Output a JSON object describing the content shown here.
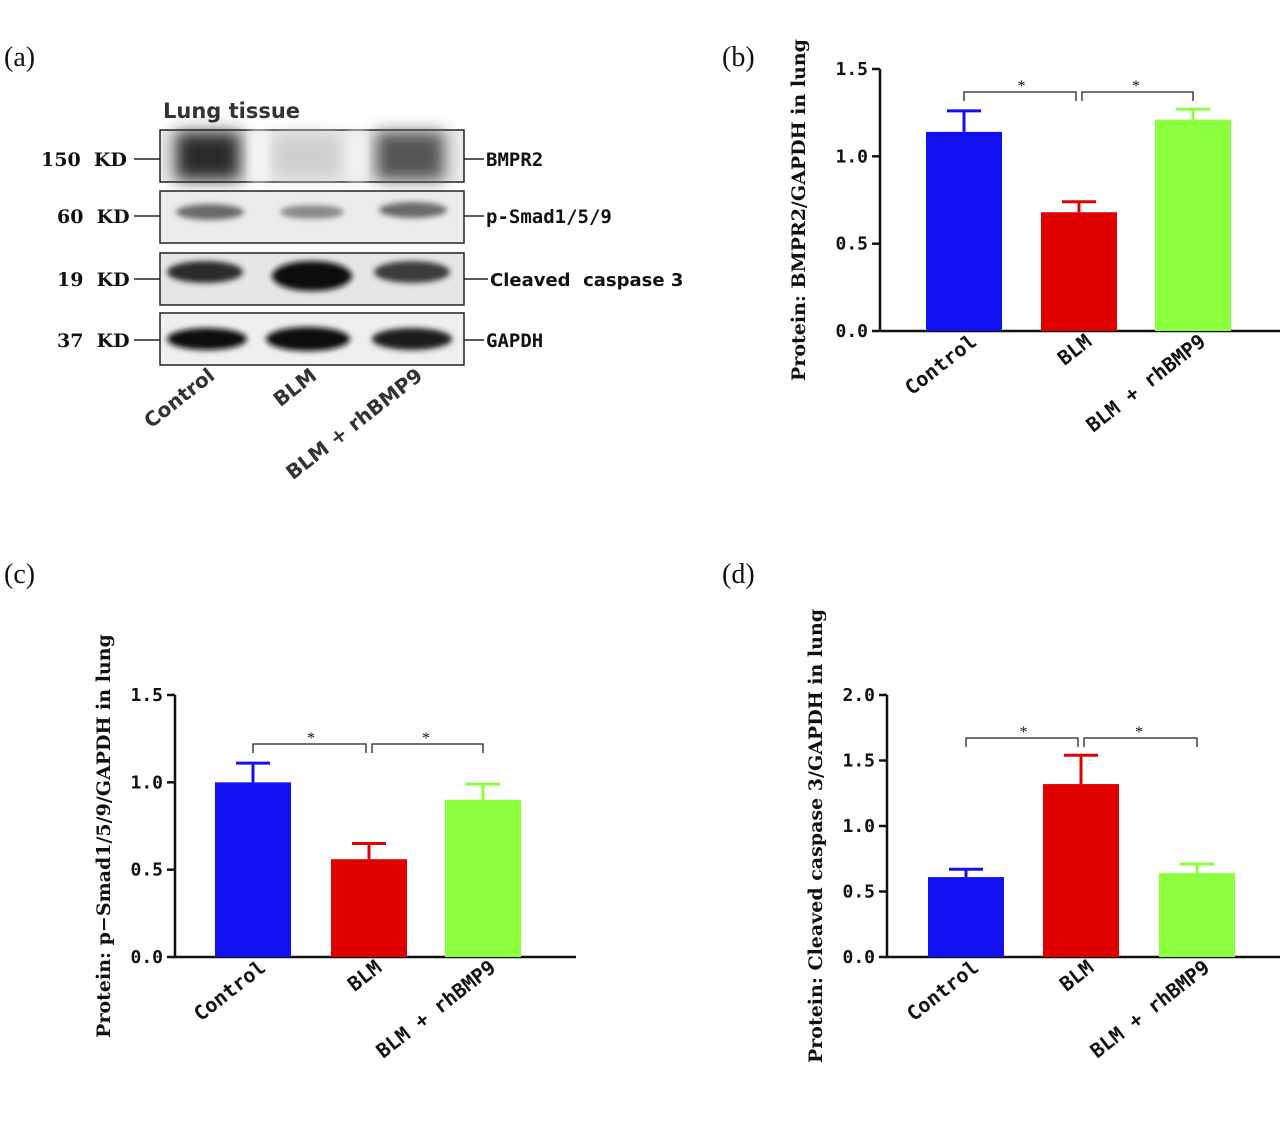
{
  "western_blot": {
    "panel_label": "(a)",
    "title": "Lung tissue",
    "rows": [
      {
        "kd": "150  KD",
        "protein": "BMPR2"
      },
      {
        "kd": "60  KD",
        "protein": "p-Smad1/5/9"
      },
      {
        "kd": "19  KD",
        "protein": "Cleaved  caspase 3"
      },
      {
        "kd": "37  KD",
        "protein": "GAPDH"
      }
    ],
    "lanes": [
      "Control",
      "BLM",
      "BLM + rhBMP9"
    ]
  },
  "colors": {
    "control": "#1010f0",
    "blm": "#e00000",
    "rhbmp9": "#8cff3c"
  },
  "chart_data": [
    {
      "panel_label": "(b)",
      "type": "bar",
      "categories": [
        "Control",
        "BLM",
        "BLM + rhBMP9"
      ],
      "values": [
        1.14,
        0.68,
        1.21
      ],
      "errors": [
        0.12,
        0.06,
        0.06
      ],
      "ylabel": "Protein: BMPR2/GAPDH in lung",
      "ylim": [
        0,
        1.5
      ],
      "yticks": [
        "0.0",
        "0.5",
        "1.0",
        "1.5"
      ],
      "significance": [
        {
          "from": 0,
          "to": 1,
          "label": "*"
        },
        {
          "from": 1,
          "to": 2,
          "label": "*"
        }
      ]
    },
    {
      "panel_label": "(c)",
      "type": "bar",
      "categories": [
        "Control",
        "BLM",
        "BLM + rhBMP9"
      ],
      "values": [
        1.0,
        0.56,
        0.9
      ],
      "errors": [
        0.11,
        0.09,
        0.09
      ],
      "ylabel": "Protein:  p−Smad1/5/9/GAPDH in lung",
      "ylim": [
        0,
        1.5
      ],
      "yticks": [
        "0.0",
        "0.5",
        "1.0",
        "1.5"
      ],
      "significance": [
        {
          "from": 0,
          "to": 1,
          "label": "*"
        },
        {
          "from": 1,
          "to": 2,
          "label": "*"
        }
      ]
    },
    {
      "panel_label": "(d)",
      "type": "bar",
      "categories": [
        "Control",
        "BLM",
        "BLM + rhBMP9"
      ],
      "values": [
        0.61,
        1.32,
        0.64
      ],
      "errors": [
        0.06,
        0.22,
        0.07
      ],
      "ylabel": "Protein: Cleaved caspase 3/GAPDH in lung",
      "ylim": [
        0,
        2.0
      ],
      "yticks": [
        "0.0",
        "0.5",
        "1.0",
        "1.5",
        "2.0"
      ],
      "significance": [
        {
          "from": 0,
          "to": 1,
          "label": "*"
        },
        {
          "from": 1,
          "to": 2,
          "label": "*"
        }
      ]
    }
  ]
}
